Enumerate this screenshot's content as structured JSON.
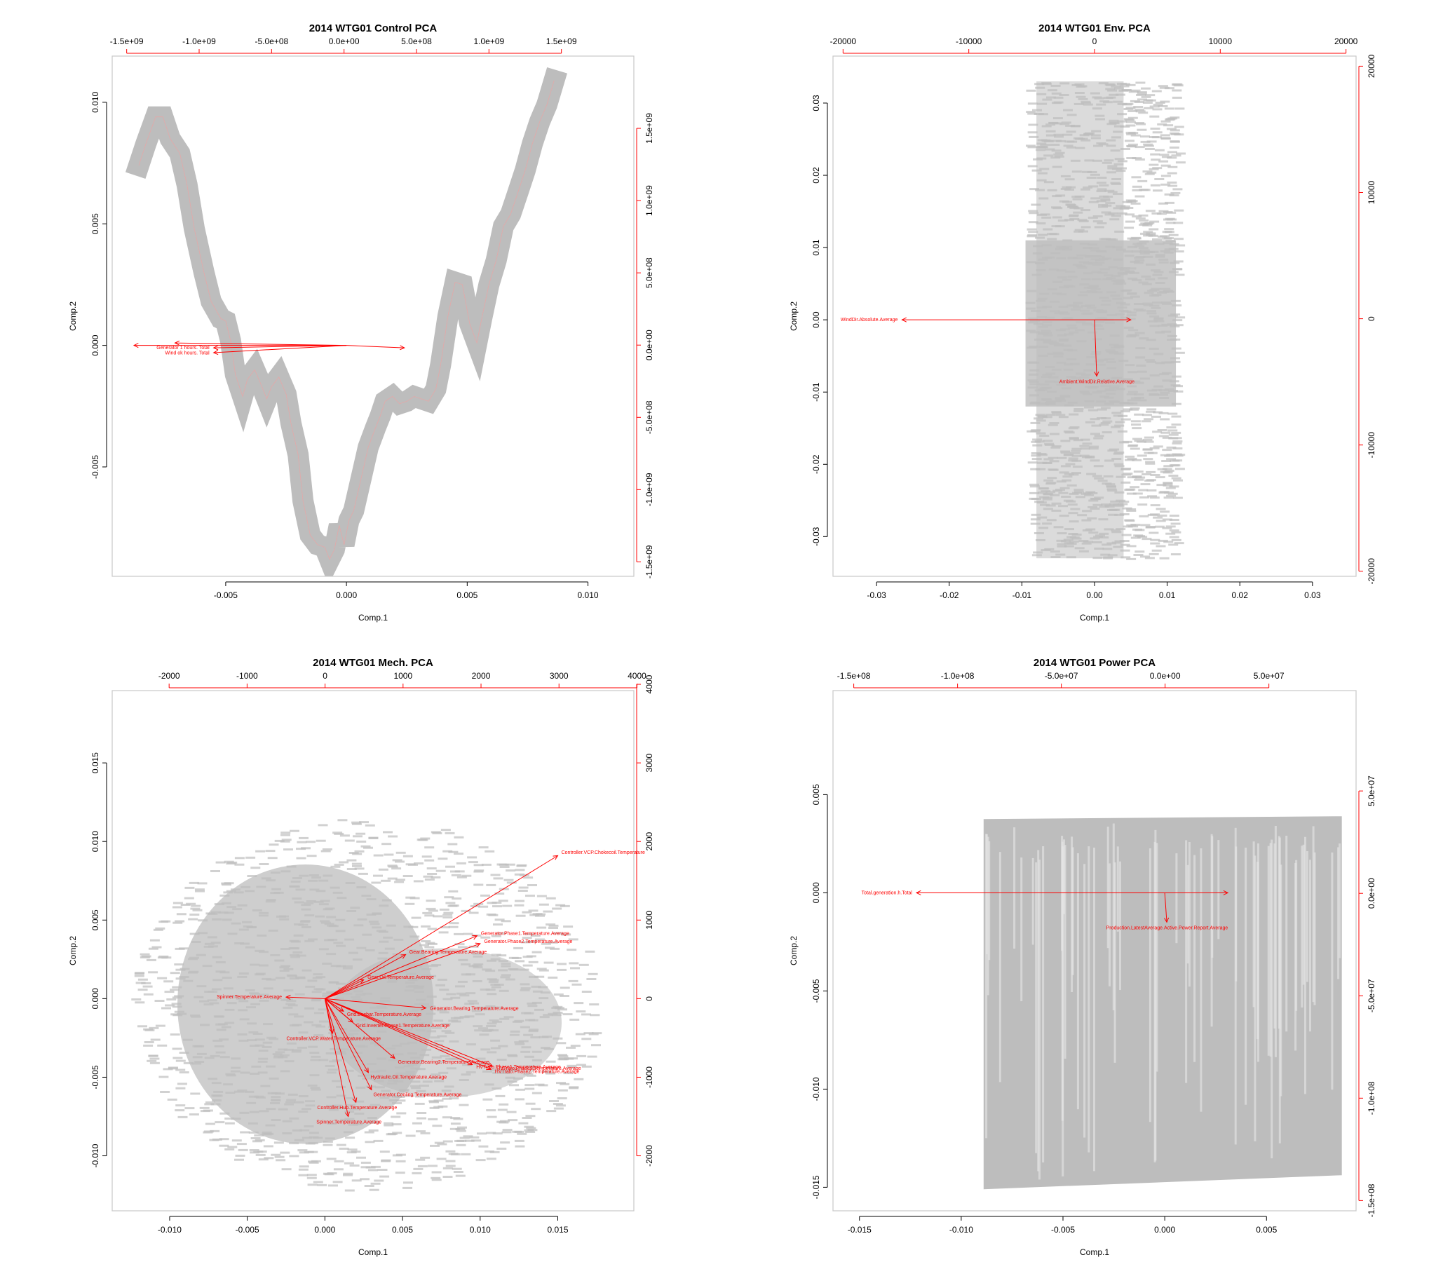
{
  "chart_data": [
    {
      "type": "scatter",
      "subtype": "biplot",
      "title": "2014 WTG01 Control PCA",
      "xlabel": "Comp.1",
      "ylabel": "Comp.2",
      "xlim": [
        -0.0097,
        0.0119
      ],
      "ylim": [
        -0.0095,
        0.0119
      ],
      "xticks": [
        -0.005,
        0.0,
        0.005,
        0.01
      ],
      "xtick_labels": [
        "-0.005",
        "0.000",
        "0.005",
        "0.010"
      ],
      "yticks": [
        -0.005,
        0.0,
        0.005,
        0.01
      ],
      "ytick_labels": [
        "-0.005",
        "0.000",
        "0.005",
        "0.010"
      ],
      "top_lim": [
        -1600000000.0,
        2000000000.0
      ],
      "top_ticks": [
        -1500000000.0,
        -1000000000.0,
        -500000000.0,
        0,
        500000000.0,
        1000000000.0,
        1500000000.0
      ],
      "top_tick_labels": [
        "-1.5e+09",
        "-1.0e+09",
        "-5.0e+08",
        "0.0e+00",
        "5.0e+08",
        "1.0e+09",
        "1.5e+09"
      ],
      "right_lim": [
        -1600000000.0,
        2000000000.0
      ],
      "right_ticks": [
        -1500000000.0,
        -1000000000.0,
        -500000000.0,
        0,
        500000000.0,
        1000000000.0,
        1500000000.0
      ],
      "right_tick_labels": [
        "-1.5e+09",
        "-1.0e+09",
        "-5.0e+08",
        "0.0e+00",
        "5.0e+08",
        "1.0e+09",
        "1.5e+09"
      ],
      "scores_style": "thick-band",
      "scores": [
        [
          -0.0086,
          0.0074
        ],
        [
          -0.0083,
          0.0083
        ],
        [
          -0.0079,
          0.0094
        ],
        [
          -0.0076,
          0.0094
        ],
        [
          -0.0073,
          0.0085
        ],
        [
          -0.0069,
          0.0079
        ],
        [
          -0.0066,
          0.0066
        ],
        [
          -0.0063,
          0.0048
        ],
        [
          -0.0059,
          0.003
        ],
        [
          -0.0056,
          0.0018
        ],
        [
          -0.0052,
          0.0011
        ],
        [
          -0.005,
          0.001
        ],
        [
          -0.0048,
          0.0002
        ],
        [
          -0.0046,
          -0.0012
        ],
        [
          -0.0043,
          -0.0021
        ],
        [
          -0.0041,
          -0.0014
        ],
        [
          -0.0038,
          -0.001
        ],
        [
          -0.0035,
          -0.0017
        ],
        [
          -0.0033,
          -0.0022
        ],
        [
          -0.0031,
          -0.0017
        ],
        [
          -0.0028,
          -0.0013
        ],
        [
          -0.0025,
          -0.002
        ],
        [
          -0.0023,
          -0.0032
        ],
        [
          -0.002,
          -0.0045
        ],
        [
          -0.0018,
          -0.0064
        ],
        [
          -0.0015,
          -0.0078
        ],
        [
          -0.0012,
          -0.0082
        ],
        [
          -0.0009,
          -0.0083
        ],
        [
          -0.0007,
          -0.0088
        ],
        [
          -0.0005,
          -0.0084
        ],
        [
          -0.0003,
          -0.0074
        ],
        [
          -0.0001,
          -0.0082
        ],
        [
          0.0001,
          -0.0072
        ],
        [
          0.0003,
          -0.0068
        ],
        [
          0.0006,
          -0.0055
        ],
        [
          0.0009,
          -0.0042
        ],
        [
          0.0012,
          -0.0034
        ],
        [
          0.0014,
          -0.0029
        ],
        [
          0.0016,
          -0.0023
        ],
        [
          0.0019,
          -0.0021
        ],
        [
          0.0022,
          -0.0024
        ],
        [
          0.0025,
          -0.0023
        ],
        [
          0.0028,
          -0.0021
        ],
        [
          0.0031,
          -0.0022
        ],
        [
          0.0034,
          -0.0023
        ],
        [
          0.0037,
          -0.0018
        ],
        [
          0.0039,
          -0.0008
        ],
        [
          0.0042,
          0.0012
        ],
        [
          0.0045,
          0.0026
        ],
        [
          0.0048,
          0.0025
        ],
        [
          0.0051,
          0.0009
        ],
        [
          0.0054,
          0.0001
        ],
        [
          0.0056,
          0.0011
        ],
        [
          0.0059,
          0.0025
        ],
        [
          0.0062,
          0.0035
        ],
        [
          0.0065,
          0.0049
        ],
        [
          0.0068,
          0.0054
        ],
        [
          0.0071,
          0.0063
        ],
        [
          0.0074,
          0.0072
        ],
        [
          0.0077,
          0.0083
        ],
        [
          0.008,
          0.0092
        ],
        [
          0.0083,
          0.0099
        ],
        [
          0.0086,
          0.0109
        ]
      ],
      "loadings": [
        {
          "label": "Generator 1 hours. Total",
          "x": -0.0055,
          "y": -0.0001
        },
        {
          "label": "Wind ok hours. Total",
          "x": -0.0055,
          "y": -0.0003
        },
        {
          "label": "",
          "x": -0.0071,
          "y": 0.0001
        },
        {
          "label": "",
          "x": -0.0088,
          "y": 0.0
        },
        {
          "label": "",
          "x": 0.0024,
          "y": -0.0001
        }
      ]
    },
    {
      "type": "scatter",
      "subtype": "biplot",
      "title": "2014 WTG01 Env. PCA",
      "xlabel": "Comp.1",
      "ylabel": "Comp.2",
      "xlim": [
        -0.036,
        0.036
      ],
      "ylim": [
        -0.0355,
        0.0365
      ],
      "xticks": [
        -0.03,
        -0.02,
        -0.01,
        0.0,
        0.01,
        0.02,
        0.03
      ],
      "xtick_labels": [
        "-0.03",
        "-0.02",
        "-0.01",
        "0.00",
        "0.01",
        "0.02",
        "0.03"
      ],
      "yticks": [
        -0.03,
        -0.02,
        -0.01,
        0.0,
        0.01,
        0.02,
        0.03
      ],
      "ytick_labels": [
        "-0.03",
        "-0.02",
        "-0.01",
        "0.00",
        "0.01",
        "0.02",
        "0.03"
      ],
      "top_lim": [
        -20800,
        20800
      ],
      "top_ticks": [
        -20000,
        -10000,
        0,
        10000,
        20000
      ],
      "top_tick_labels": [
        "-20000",
        "-10000",
        "0",
        "10000",
        "20000"
      ],
      "right_lim": [
        -20400,
        20800
      ],
      "right_ticks": [
        -20000,
        -10000,
        0,
        10000,
        20000
      ],
      "right_tick_labels": [
        "-20000",
        "-10000",
        "0",
        "10000",
        "20000"
      ],
      "scores_style": "cloud",
      "cloud_x": [
        -0.0095,
        0.0112
      ],
      "cloud_y": [
        -0.033,
        0.033
      ],
      "loadings": [
        {
          "label": "WindDir.Absolute.Average",
          "x": -0.0265,
          "y": 0.0
        },
        {
          "label": "Ambient.WindDir.Relative.Average",
          "x": 0.0003,
          "y": -0.0078
        },
        {
          "label": "",
          "x": 0.005,
          "y": 0.0
        }
      ]
    },
    {
      "type": "scatter",
      "subtype": "biplot",
      "title": "2014 WTG01 Mech. PCA",
      "xlabel": "Comp.1",
      "ylabel": "Comp.2",
      "xlim": [
        -0.0137,
        0.0199
      ],
      "ylim": [
        -0.0135,
        0.0196
      ],
      "xticks": [
        -0.01,
        -0.005,
        0.0,
        0.005,
        0.01,
        0.015
      ],
      "xtick_labels": [
        "-0.010",
        "-0.005",
        "0.000",
        "0.005",
        "0.010",
        "0.015"
      ],
      "yticks": [
        -0.01,
        -0.005,
        0.0,
        0.005,
        0.01,
        0.015
      ],
      "ytick_labels": [
        "-0.010",
        "-0.005",
        "0.000",
        "0.005",
        "0.010",
        "0.015"
      ],
      "top_lim": [
        -2730,
        3960
      ],
      "top_ticks": [
        -2000,
        -1000,
        0,
        1000,
        2000,
        3000,
        4000
      ],
      "top_tick_labels": [
        "-2000",
        "-1000",
        "0",
        "1000",
        "2000",
        "3000",
        "4000"
      ],
      "right_lim": [
        -2700,
        3920
      ],
      "right_ticks": [
        -2000,
        -1000,
        0,
        1000,
        2000,
        3000,
        4000
      ],
      "right_tick_labels": [
        "-2000",
        "-1000",
        "0",
        "1000",
        "2000",
        "3000",
        "4000"
      ],
      "scores_style": "cloud",
      "cloud_x": [
        -0.0125,
        0.0175
      ],
      "cloud_y": [
        -0.0122,
        0.0115
      ],
      "loadings": [
        {
          "label": "Controller.VCP.Chokecoil.Temperature",
          "x": 0.015,
          "y": 0.0091
        },
        {
          "label": "Generator.Phase1.Temperature.Average",
          "x": 0.0098,
          "y": 0.004
        },
        {
          "label": "Generator.Phase2.Temperature.Average",
          "x": 0.01,
          "y": 0.0035
        },
        {
          "label": "Gear.Bearing.Temperature.Average",
          "x": 0.0052,
          "y": 0.0028
        },
        {
          "label": "Gear.Oil.Temperature.Average",
          "x": 0.0025,
          "y": 0.0012
        },
        {
          "label": "Spinner.Temperature.Average",
          "x": -0.0025,
          "y": 0.0001
        },
        {
          "label": "Generator.Bearing.Temperature.Average",
          "x": 0.0065,
          "y": -0.0006
        },
        {
          "label": "Grid.Busbar.Temperature.Average",
          "x": 0.0012,
          "y": -0.0008
        },
        {
          "label": "Grid.Inverter.Phase1.Temperature.Average",
          "x": 0.0018,
          "y": -0.0015
        },
        {
          "label": "Controller.VCP.Water.Temperature.Average",
          "x": 0.0005,
          "y": -0.0022
        },
        {
          "label": "Generator.Bearing2.Temperature.Average",
          "x": 0.0045,
          "y": -0.0038
        },
        {
          "label": "HVTrafo.Phase2.Temperature.Average",
          "x": 0.0107,
          "y": -0.0045
        },
        {
          "label": "HVTrafo.Phase3.Temperature.Average",
          "x": 0.0108,
          "y": -0.0043
        },
        {
          "label": "HVTrafo.Phase1.Temperature.Average",
          "x": 0.0095,
          "y": -0.0042
        },
        {
          "label": "Hydraulic.Oil.Temperature.Average",
          "x": 0.0028,
          "y": -0.0047
        },
        {
          "label": "Generator.Cooling.Temperature.Average",
          "x": 0.003,
          "y": -0.0058
        },
        {
          "label": "Controller.Hub.Temperature.Average",
          "x": 0.002,
          "y": -0.0066
        },
        {
          "label": "Spinner.Temperature.Average",
          "x": 0.0015,
          "y": -0.0075
        }
      ]
    },
    {
      "type": "scatter",
      "subtype": "biplot",
      "title": "2014 WTG01 Power PCA",
      "xlabel": "Comp.1",
      "ylabel": "Comp.2",
      "xlim": [
        -0.0163,
        0.0094
      ],
      "ylim": [
        -0.0162,
        0.0103
      ],
      "xticks": [
        -0.015,
        -0.01,
        -0.005,
        0.0,
        0.005
      ],
      "xtick_labels": [
        "-0.015",
        "-0.010",
        "-0.005",
        "0.000",
        "0.005"
      ],
      "yticks": [
        -0.015,
        -0.01,
        -0.005,
        0.0,
        0.005
      ],
      "ytick_labels": [
        "-0.015",
        "-0.010",
        "-0.005",
        "0.000",
        "0.005"
      ],
      "top_lim": [
        -160000000.0,
        92000000.0
      ],
      "top_ticks": [
        -150000000.0,
        -100000000.0,
        -50000000.0,
        0,
        50000000.0
      ],
      "top_tick_labels": [
        "-1.5e+08",
        "-1.0e+08",
        "-5.0e+07",
        "0.0e+00",
        "5.0e+07"
      ],
      "right_lim": [
        -155000000.0,
        99000000.0
      ],
      "right_ticks": [
        -150000000.0,
        -100000000.0,
        -50000000.0,
        0,
        50000000.0
      ],
      "right_tick_labels": [
        "-1.5e+08",
        "-1.0e+08",
        "-5.0e+07",
        "0.0e+00",
        "5.0e+07"
      ],
      "scores_style": "block",
      "cloud_x": [
        -0.0089,
        0.0087
      ],
      "cloud_y": [
        -0.0151,
        0.0039
      ],
      "loadings": [
        {
          "label": "Total.generation.h.Total",
          "x": -0.0122,
          "y": 0.0
        },
        {
          "label": "Production.LatestAverage.Active.Power.Report.Average",
          "x": 0.0001,
          "y": -0.0015
        },
        {
          "label": "",
          "x": 0.0031,
          "y": 0.0
        }
      ]
    }
  ]
}
